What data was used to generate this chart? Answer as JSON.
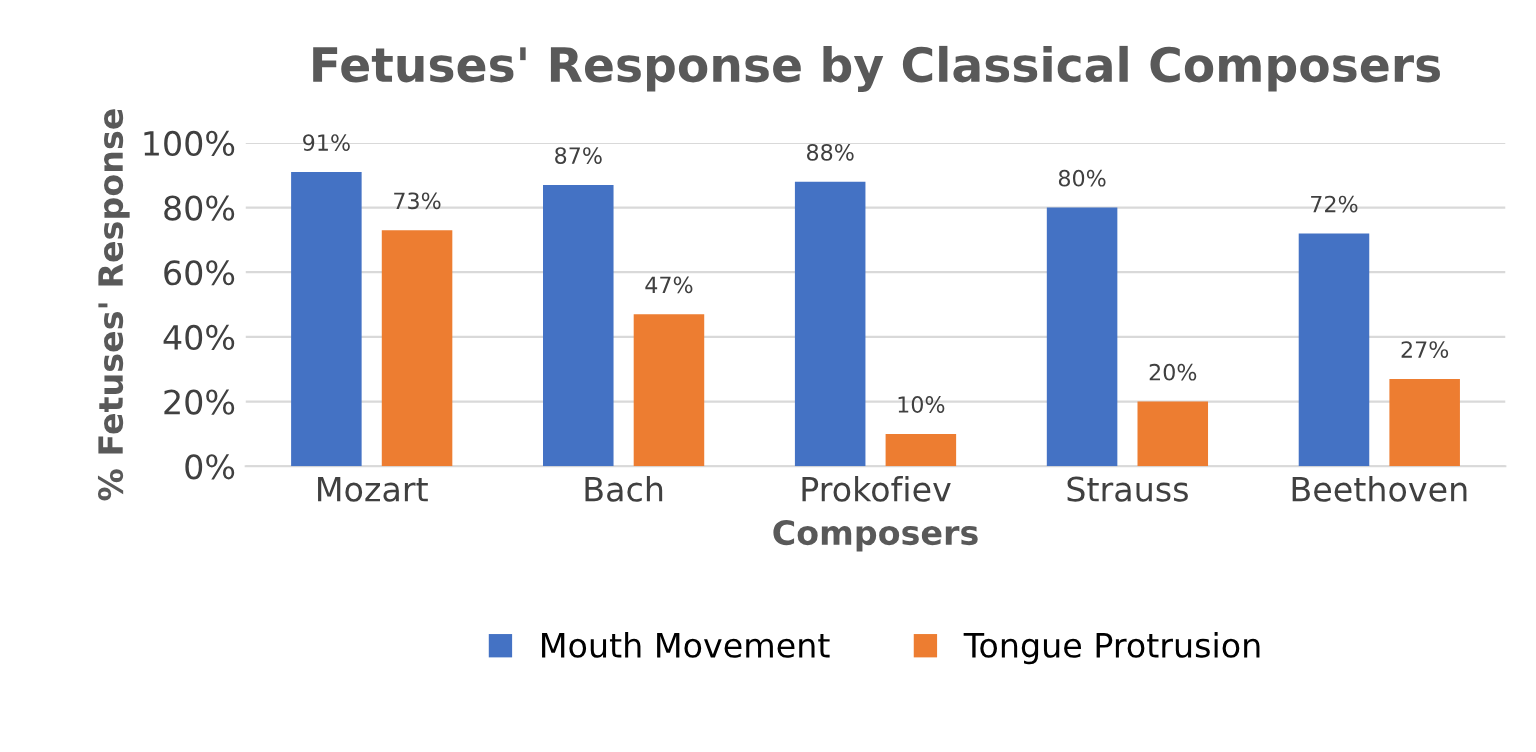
{
  "chart_data": {
    "type": "bar",
    "title": "Fetuses' Response by Classical Composers",
    "xlabel": "Composers",
    "ylabel": "% Fetuses' Response",
    "categories": [
      "Mozart",
      "Bach",
      "Prokofiev",
      "Strauss",
      "Beethoven"
    ],
    "series": [
      {
        "name": "Mouth Movement",
        "color": "#4472c4",
        "values": [
          91,
          87,
          88,
          80,
          72
        ],
        "value_labels": [
          "91%",
          "87%",
          "88%",
          "80%",
          "72%"
        ]
      },
      {
        "name": "Tongue Protrusion",
        "color": "#ed7d31",
        "values": [
          73,
          47,
          10,
          20,
          27
        ],
        "value_labels": [
          "73%",
          "47%",
          "10%",
          "20%",
          "27%"
        ]
      }
    ],
    "ylim": [
      0,
      100
    ],
    "yticks": [
      {
        "value": 0,
        "label": "0%"
      },
      {
        "value": 20,
        "label": "20%"
      },
      {
        "value": 40,
        "label": "40%"
      },
      {
        "value": 60,
        "label": "60%"
      },
      {
        "value": 80,
        "label": "80%"
      },
      {
        "value": 100,
        "label": "100%"
      }
    ],
    "grid": "y",
    "legend": "bottom"
  }
}
